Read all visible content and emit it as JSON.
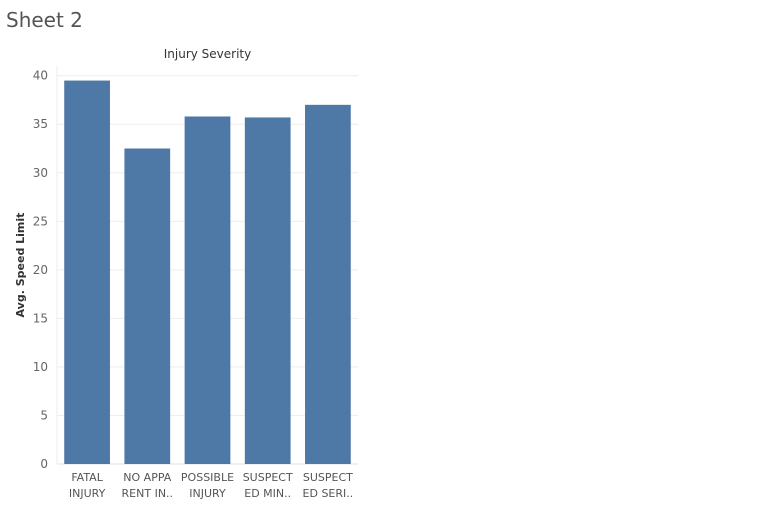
{
  "sheet_title": "Sheet 2",
  "chart_data": {
    "type": "bar",
    "title": "Injury Severity",
    "xlabel": "",
    "ylabel": "Avg. Speed Limit",
    "ylim": [
      0,
      41
    ],
    "yticks": [
      0,
      5,
      10,
      15,
      20,
      25,
      30,
      35,
      40
    ],
    "grid": true,
    "categories": [
      [
        "FATAL",
        "INJURY"
      ],
      [
        "NO APPA",
        "RENT IN.."
      ],
      [
        "POSSIBLE",
        "INJURY"
      ],
      [
        "SUSPECT",
        "ED MIN.."
      ],
      [
        "SUSPECT",
        "ED SERI.."
      ]
    ],
    "values": [
      39.5,
      32.5,
      35.8,
      35.7,
      37.0
    ],
    "colors": {
      "bar": "#4e79a7",
      "grid": "#eeeeee",
      "axis": "#e0e0e0"
    }
  }
}
